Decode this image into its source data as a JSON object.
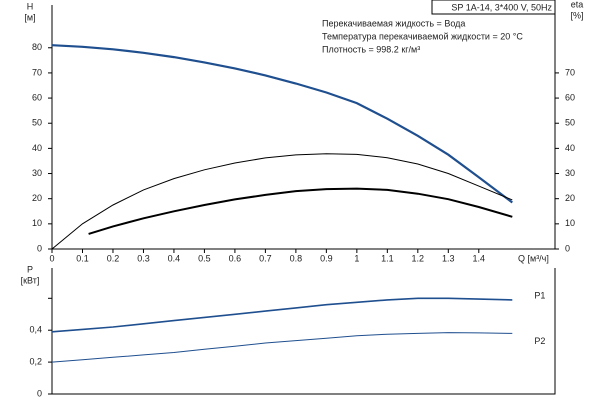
{
  "chart_data": [
    {
      "type": "line",
      "y_label": "H",
      "y_unit": "[м]",
      "y2_label": "eta",
      "y2_unit": "[%]",
      "x_label": "Q [м³/ч]",
      "header": "SP 1A-14, 3*400 V, 50Hz",
      "annotations": [
        "Перекачиваемая жидкость = Вода",
        "Температура перекачиваемой жидкости = 20 °C",
        "Плотность = 998.2 кг/м³"
      ],
      "xlim": [
        0,
        1.65
      ],
      "xticks": [
        0,
        0.1,
        0.2,
        0.3,
        0.4,
        0.5,
        0.6,
        0.7,
        0.8,
        0.9,
        1,
        1.1,
        1.2,
        1.3,
        1.4
      ],
      "ylim": [
        0,
        97
      ],
      "yticks": [
        0,
        10,
        20,
        30,
        40,
        50,
        60,
        70,
        80
      ],
      "y2lim": [
        0,
        97
      ],
      "y2ticks": [
        0,
        10,
        20,
        30,
        40,
        50,
        60,
        70
      ],
      "series": [
        {
          "color": "#1f4f8f",
          "width": 2.2,
          "x": [
            0,
            0.1,
            0.2,
            0.3,
            0.4,
            0.5,
            0.6,
            0.7,
            0.8,
            0.9,
            1.0,
            1.1,
            1.2,
            1.3,
            1.4,
            1.51
          ],
          "values": [
            81,
            80.4,
            79.4,
            78,
            76.3,
            74.2,
            71.8,
            69,
            65.8,
            62.2,
            58,
            51.8,
            45,
            37.5,
            28.5,
            18.5
          ]
        },
        {
          "color": "#000000",
          "width": 1,
          "axis": "y2",
          "x": [
            0,
            0.1,
            0.2,
            0.3,
            0.4,
            0.5,
            0.6,
            0.7,
            0.8,
            0.9,
            1.0,
            1.1,
            1.2,
            1.3,
            1.4,
            1.51
          ],
          "values": [
            0,
            10,
            17.5,
            23.5,
            28,
            31.5,
            34.2,
            36.2,
            37.4,
            37.9,
            37.6,
            36.3,
            33.8,
            30,
            25,
            19.5
          ]
        },
        {
          "color": "#000000",
          "width": 2,
          "axis": "y2",
          "x": [
            0.12,
            0.2,
            0.3,
            0.4,
            0.5,
            0.6,
            0.7,
            0.8,
            0.9,
            1.0,
            1.1,
            1.2,
            1.3,
            1.4,
            1.51
          ],
          "values": [
            6,
            9,
            12.2,
            15,
            17.5,
            19.7,
            21.5,
            23,
            23.8,
            24,
            23.5,
            22,
            19.8,
            16.7,
            12.8
          ]
        }
      ]
    },
    {
      "type": "line",
      "y_label": "P",
      "y_unit": "[кВт]",
      "xlim": [
        0,
        1.65
      ],
      "ylim": [
        0,
        0.79
      ],
      "yticks": [
        {
          "value": 0,
          "label": "0"
        },
        {
          "value": 0.2,
          "label": "0,2"
        },
        {
          "value": 0.4,
          "label": "0,4"
        },
        {
          "value": 0.6,
          "label": null
        }
      ],
      "series": [
        {
          "name": "P1",
          "color": "#1f4f8f",
          "width": 1.6,
          "x": [
            0,
            0.1,
            0.2,
            0.3,
            0.4,
            0.5,
            0.6,
            0.7,
            0.8,
            0.9,
            1.0,
            1.1,
            1.2,
            1.3,
            1.4,
            1.51
          ],
          "values": [
            0.39,
            0.405,
            0.42,
            0.44,
            0.46,
            0.48,
            0.5,
            0.52,
            0.54,
            0.56,
            0.575,
            0.59,
            0.6,
            0.6,
            0.595,
            0.59
          ]
        },
        {
          "name": "P2",
          "color": "#1f4f8f",
          "width": 1,
          "x": [
            0,
            0.1,
            0.2,
            0.3,
            0.4,
            0.5,
            0.6,
            0.7,
            0.8,
            0.9,
            1.0,
            1.1,
            1.2,
            1.3,
            1.4,
            1.51
          ],
          "values": [
            0.2,
            0.215,
            0.23,
            0.245,
            0.26,
            0.28,
            0.3,
            0.32,
            0.335,
            0.35,
            0.365,
            0.375,
            0.38,
            0.385,
            0.383,
            0.38
          ]
        }
      ]
    }
  ]
}
